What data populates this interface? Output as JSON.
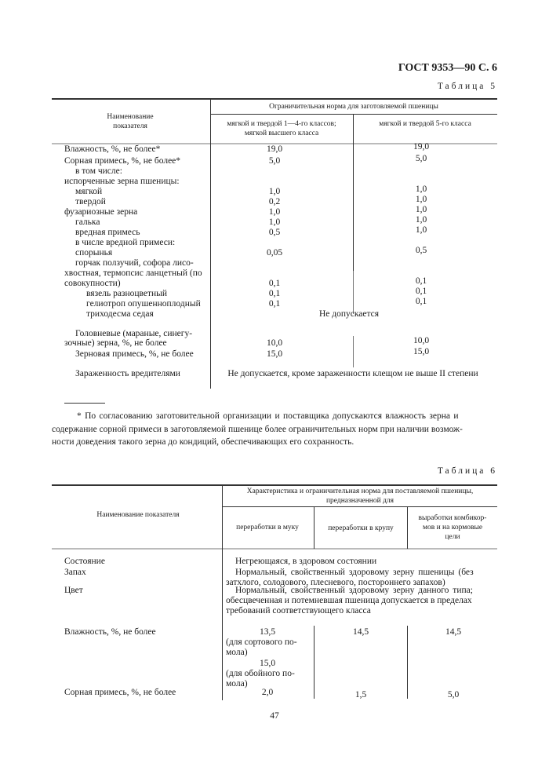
{
  "header": {
    "doc_ref": "ГОСТ 9353—90 С. 6"
  },
  "table5": {
    "caption": "Таблица 5",
    "col_name_header": [
      "Наименование",
      "показателя"
    ],
    "group_header": "Ограничительная норма для  заготовляемой пшеницы",
    "sub_headers": [
      [
        "мягкой и твердой 1—4-го классов;",
        "мягкой высшего класса"
      ],
      [
        "мягкой и твердой  5-го класса"
      ]
    ],
    "rows": [
      {
        "name": "Влажность, %, не более*",
        "v1": "19,0",
        "v2": "19,0"
      },
      {
        "name": "Сорная примесь, %, не более*",
        "v1": "5,0",
        "v2": "5,0"
      },
      {
        "name": "в том числе:"
      },
      {
        "name": "испорченные зерна пшеницы:"
      },
      {
        "name": "мягкой",
        "v1": "1,0",
        "v2": "1,0"
      },
      {
        "name": "твердой",
        "v1": "0,2",
        "v2": "1,0"
      },
      {
        "name": "фузариозные зерна",
        "v1": "1,0",
        "v2": "1,0"
      },
      {
        "name": "галька",
        "v1": "1,0",
        "v2": "1,0"
      },
      {
        "name": "вредная примесь",
        "v1": "0,5",
        "v2": "1,0"
      },
      {
        "name": "в числе вредной примеси:"
      },
      {
        "name": "спорынья",
        "v1": "0,05",
        "v2": "0,5"
      },
      {
        "name": "горчак ползучий, софора лисо-"
      },
      {
        "name": "хвостная, термопсис ланцетный (по"
      },
      {
        "name": "совокупности)",
        "v1": "0,1",
        "v2": "0,1"
      },
      {
        "name": "вязель разноцветный",
        "v1": "0,1",
        "v2": "0,1"
      },
      {
        "name": "гелиотроп опушенноплодный",
        "v1": "0,1",
        "v2": "0,1"
      },
      {
        "name": "триходесма седая",
        "merged": "Не допускается"
      },
      {
        "name": "Головневые (мараные, синегу-"
      },
      {
        "name": "зочные) зерна, %, не более",
        "v1": "10,0",
        "v2": "10,0"
      },
      {
        "name": "Зерновая примесь, %, не более",
        "v1": "15,0",
        "v2": "15,0"
      },
      {
        "name": "Зараженность вредителями",
        "merged": "Не допускается, кроме зараженности клещом не выше  II степени"
      }
    ]
  },
  "footnote": [
    "* По согласованию заготовительной организации и поставщика допускаются влажность зерна и",
    "содержание сорной примеси в заготовляемой пшенице более ограничительных норм при наличии возмож-",
    "ности доведения такого зерна до кондиций, обеспечивающих его сохранность."
  ],
  "table6": {
    "caption": "Таблица 6",
    "col_name_header": "Наименование показателя",
    "group_header": [
      "Характеристика и ограничительная норма для поставляемой пшеницы,",
      "предназначенной для"
    ],
    "sub_headers": [
      [
        "переработки в муку"
      ],
      [
        "переработки в крупу"
      ],
      [
        "выработки комбикор-",
        "мов и на кормовые",
        "цели"
      ]
    ],
    "text_rows": [
      {
        "name": "Состояние",
        "lines": [
          "Негреющаяся, в здоровом состоянии"
        ]
      },
      {
        "name": "Запах",
        "lines": [
          "Нормальный, свойственный здоровому зерну пшеницы (без",
          "затхлого, солодового, плесневого, постороннего запахов)"
        ]
      },
      {
        "name": "Цвет",
        "lines": [
          "Нормальный, свойственный здоровому зерну данного типа;",
          "обесцвеченная и потемневшая пшеница допускается в пределах",
          "требований  соответствующего класса"
        ]
      }
    ],
    "moisture": {
      "name": "Влажность, %, не более",
      "v1_lines": [
        "13,5",
        "(для сортового по-",
        "мола)",
        "15,0",
        "(для  обойного по-",
        "мола)"
      ],
      "v2": "14,5",
      "v3": "14,5"
    },
    "weed": {
      "name": "Сорная примесь, %, не более",
      "v1": "2,0",
      "v2": "1,5",
      "v3": "5,0"
    }
  },
  "page_number": "47"
}
